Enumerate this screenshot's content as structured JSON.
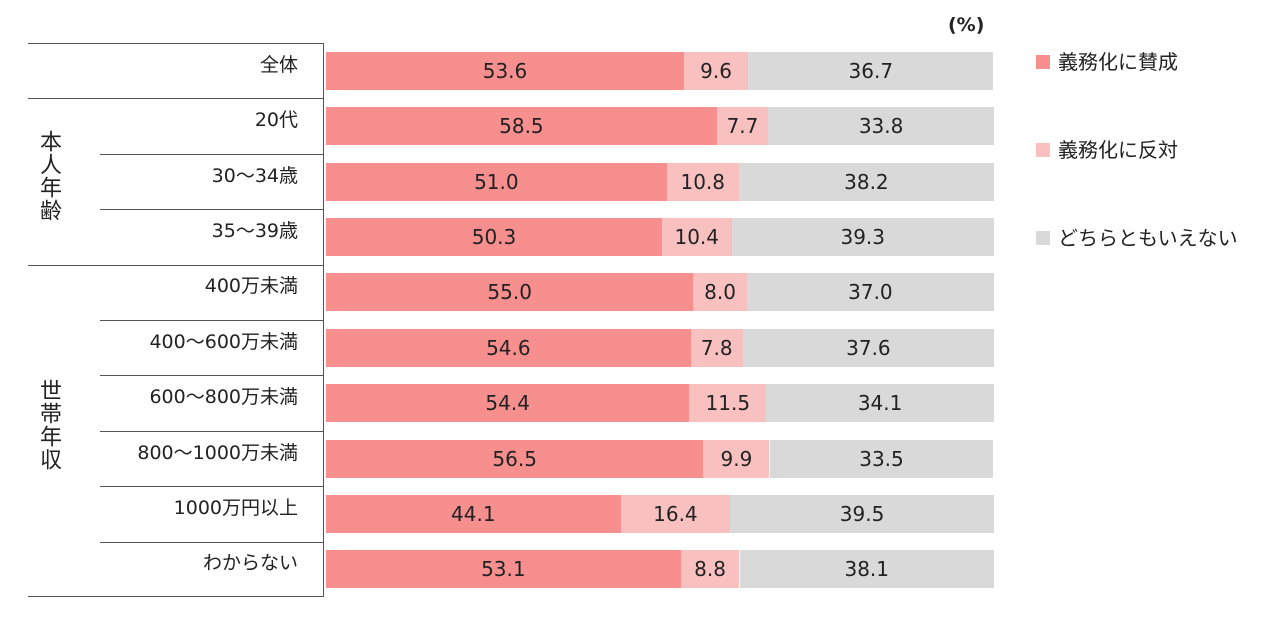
{
  "chart_data": {
    "type": "bar",
    "orientation": "horizontal",
    "stacked": true,
    "percent": true,
    "unit_label": "(%)",
    "categories": [
      "全体",
      "20代",
      "30～34歳",
      "35～39歳",
      "400万未満",
      "400～600万未満",
      "600～800万未満",
      "800～1000万未満",
      "1000万円以上",
      "わからない"
    ],
    "groups": [
      {
        "label": "本人年齢",
        "members": [
          "20代",
          "30～34歳",
          "35～39歳"
        ]
      },
      {
        "label": "世帯年収",
        "members": [
          "400万未満",
          "400～600万未満",
          "600～800万未満",
          "800～1000万未満",
          "1000万円以上",
          "わからない"
        ]
      }
    ],
    "series": [
      {
        "name": "義務化に賛成",
        "color": "#f78f8f",
        "values": [
          53.6,
          58.5,
          51.0,
          50.3,
          55.0,
          54.6,
          54.4,
          56.5,
          44.1,
          53.1
        ]
      },
      {
        "name": "義務化に反対",
        "color": "#f9c0c0",
        "values": [
          9.6,
          7.7,
          10.8,
          10.4,
          8.0,
          7.8,
          11.5,
          9.9,
          16.4,
          8.8
        ]
      },
      {
        "name": "どちらともいえない",
        "color": "#d9d9d9",
        "values": [
          36.7,
          33.8,
          38.2,
          39.3,
          37.0,
          37.6,
          34.1,
          33.5,
          39.5,
          38.1
        ]
      }
    ],
    "xlim": [
      0,
      100
    ],
    "grid": false,
    "legend_position": "right"
  }
}
